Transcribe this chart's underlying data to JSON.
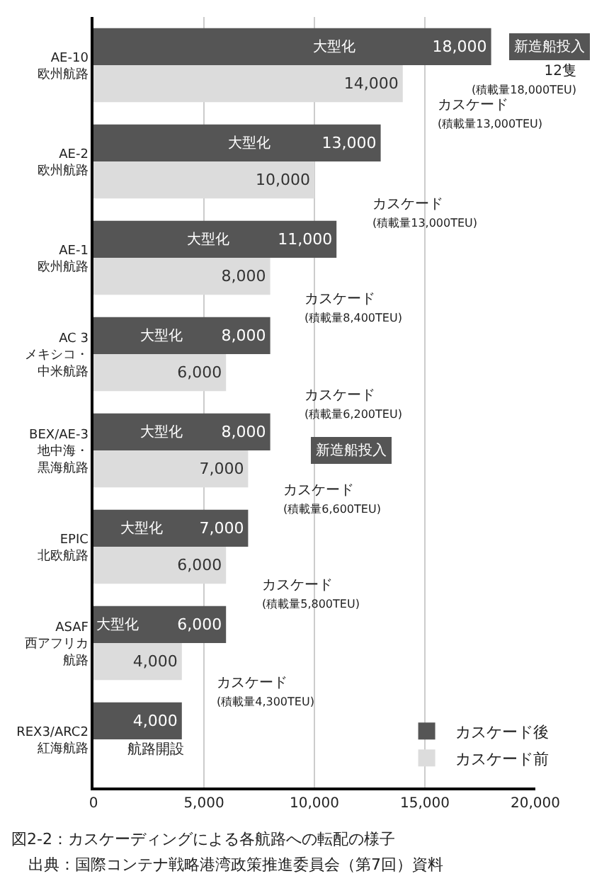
{
  "chart_data": {
    "type": "bar",
    "orientation": "horizontal",
    "title": "図2-2：カスケーディングによる各航路への転配の様子",
    "categories": [
      "AE-10\n欧州航路",
      "AE-2\n欧州航路",
      "AE-1\n欧州航路",
      "AC 3\nメキシコ・中米航路",
      "BEX/AE-3\n地中海・黒海航路",
      "EPIC\n北欧航路",
      "ASAF\n西アフリカ航路",
      "REX3/ARC2\n紅海航路"
    ],
    "series": [
      {
        "name": "カスケード後",
        "color": "#555555",
        "values": [
          18000,
          13000,
          11000,
          8000,
          8000,
          7000,
          6000,
          4000
        ],
        "value_labels": [
          "18,000",
          "13,000",
          "11,000",
          "8,000",
          "8,000",
          "7,000",
          "6,000",
          "4,000"
        ]
      },
      {
        "name": "カスケード前",
        "color": "#dcdcdc",
        "values": [
          14000,
          10000,
          8000,
          6000,
          7000,
          6000,
          4000,
          null
        ],
        "value_labels": [
          "14,000",
          "10,000",
          "8,000",
          "6,000",
          "7,000",
          "6,000",
          "4,000",
          null
        ]
      }
    ],
    "xlim": [
      0,
      20000
    ],
    "xticks": [
      0,
      {
        "value": 5000,
        "label": "5,000"
      },
      {
        "value": 10000,
        "label": "10,000"
      },
      {
        "value": 15000,
        "label": "15,000"
      },
      {
        "value": 20000,
        "label": "20,000"
      }
    ],
    "grid": "x",
    "legend": "bottom right",
    "annotations": [
      "大型化",
      "大型化",
      "大型化",
      "大型化",
      "大型化",
      "大型化",
      "大型化",
      "新造船投入",
      "12隻\n(積載量18,000TEU)",
      "カスケード\n(積載量13,000TEU)",
      "カスケード\n(積載量13,000TEU)",
      "カスケード\n(積載量8,400TEU)",
      "カスケード\n(積載量6,200TEU)",
      "カスケード\n(積載量6,600TEU)",
      "カスケード\n(積載量5,800TEU)",
      "カスケード\n(積載量4,300TEU)",
      "新造船投入",
      "航路開設",
      "出典：国際コンテナ戦略港湾政策推進委員会（第7回）資料"
    ]
  }
}
